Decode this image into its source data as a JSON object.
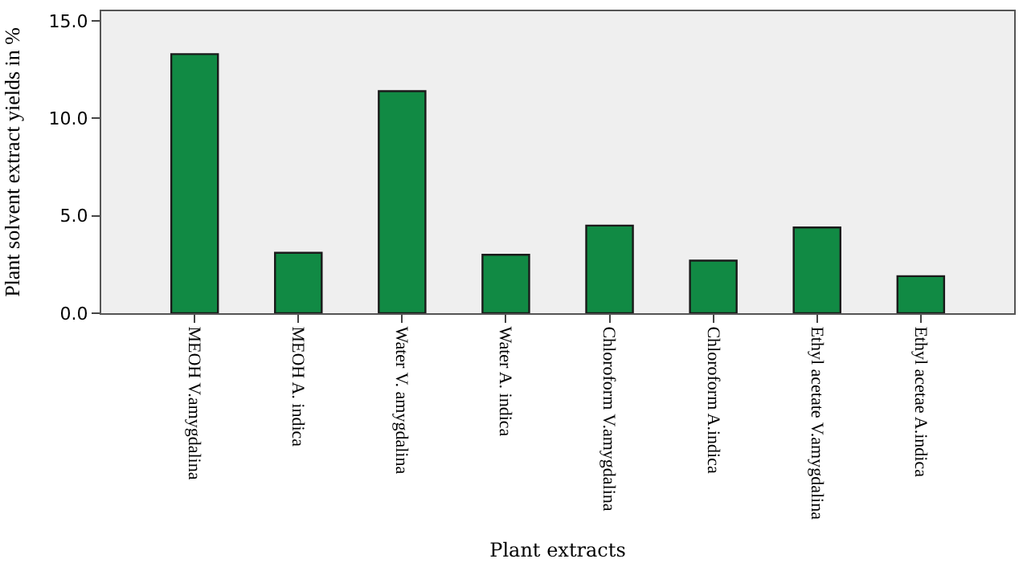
{
  "chart_data": {
    "type": "bar",
    "xlabel": "Plant extracts",
    "ylabel": "Plant solvent extract yields in %",
    "categories": [
      "MEOH V.amygdalina",
      "MEOH A. indica",
      "Water V. amygdalina",
      "Water A. indica",
      "Chloroform V.amygdalina",
      "Chloroform A.indica",
      "Ethyl acetate V.amygdalina",
      "Ethyl acetae A.indica"
    ],
    "values": [
      13.3,
      3.1,
      11.4,
      3.0,
      4.5,
      2.7,
      4.4,
      1.9
    ],
    "color": "#118a44",
    "ylim": [
      0,
      15.5
    ],
    "yticks": [
      {
        "value": 0,
        "label": "0.0"
      },
      {
        "value": 5,
        "label": "5.0"
      },
      {
        "value": 10,
        "label": "10.0"
      },
      {
        "value": 15,
        "label": "15.0"
      }
    ],
    "grid": false
  }
}
